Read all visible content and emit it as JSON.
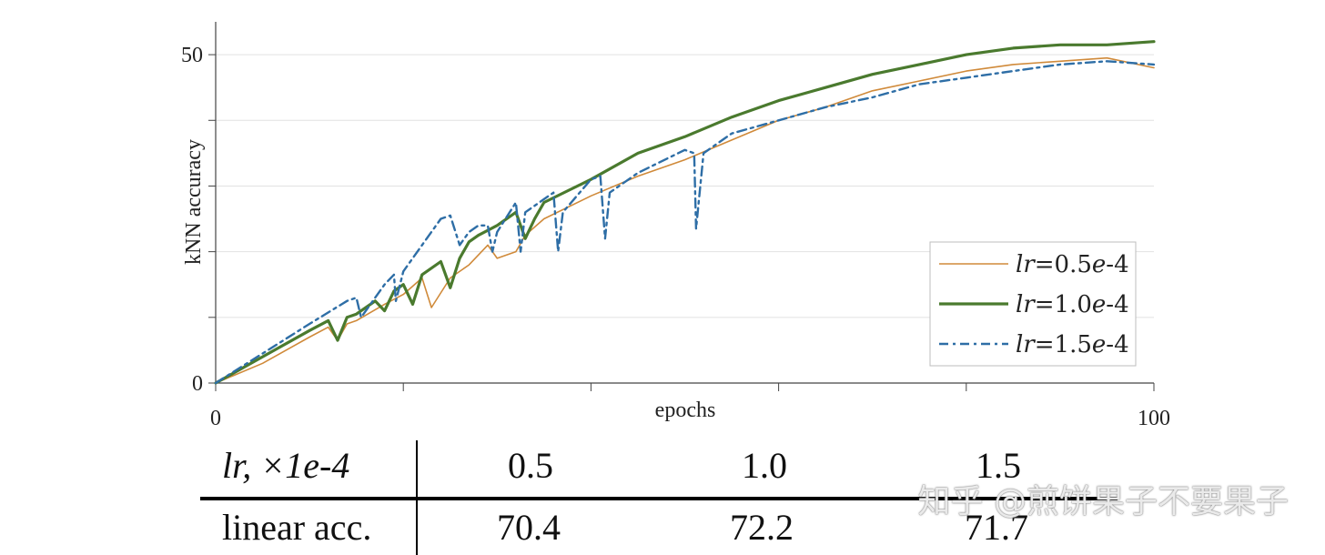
{
  "chart_data": {
    "type": "line",
    "xlabel": "epochs",
    "ylabel": "kNN accuracy",
    "xlim": [
      0,
      100
    ],
    "ylim": [
      0,
      55
    ],
    "x_ticks": [
      0,
      20,
      40,
      60,
      80,
      100
    ],
    "x_tick_labels": [
      "0",
      "",
      "",
      "",
      "",
      "100"
    ],
    "y_ticks": [
      0,
      10,
      20,
      30,
      40,
      50
    ],
    "y_tick_labels": [
      "0",
      "",
      "",
      "",
      "",
      "50"
    ],
    "grid": "horizontal",
    "legend_position": "lower-right",
    "series": [
      {
        "name": "lr=0.5e-4",
        "legend_parts": [
          {
            "t": "lr",
            "italic": true
          },
          {
            "t": "=0.5",
            "italic": false
          },
          {
            "t": "e",
            "italic": true
          },
          {
            "t": "-4",
            "italic": false
          }
        ],
        "color": "#d08a3a",
        "width": 1.6,
        "dash": "",
        "x": [
          0,
          5,
          10,
          12,
          13,
          14,
          15,
          18,
          20,
          22,
          23,
          25,
          27,
          29,
          30,
          32,
          33,
          35,
          40,
          45,
          50,
          55,
          60,
          65,
          70,
          75,
          80,
          85,
          90,
          95,
          100
        ],
        "y": [
          0,
          3,
          7,
          8.5,
          6.5,
          9,
          9.5,
          12,
          13.5,
          16,
          11.5,
          16,
          18,
          21,
          19,
          20,
          22.5,
          25,
          28.5,
          31.5,
          34,
          37,
          40,
          42,
          44.5,
          46,
          47.5,
          48.5,
          49,
          49.5,
          48
        ]
      },
      {
        "name": "lr=1.0e-4",
        "legend_parts": [
          {
            "t": "lr",
            "italic": true
          },
          {
            "t": "=1.0",
            "italic": false
          },
          {
            "t": "e",
            "italic": true
          },
          {
            "t": "-4",
            "italic": false
          }
        ],
        "color": "#4a7a2e",
        "width": 3.2,
        "dash": "",
        "x": [
          0,
          5,
          10,
          12,
          13,
          14,
          15,
          17,
          18,
          19,
          20,
          21,
          22,
          24,
          25,
          26,
          27,
          28,
          30,
          32,
          33,
          34,
          35,
          40,
          45,
          50,
          55,
          60,
          65,
          70,
          75,
          80,
          85,
          90,
          95,
          100
        ],
        "y": [
          0,
          4,
          8,
          9.5,
          6.5,
          10,
          10.5,
          12.5,
          11,
          14,
          15,
          12,
          16.5,
          18.5,
          14.5,
          19,
          21.5,
          22.5,
          24,
          26,
          22,
          25,
          27.5,
          31,
          35,
          37.5,
          40.5,
          43,
          45,
          47,
          48.5,
          50,
          51,
          51.5,
          51.5,
          52
        ]
      },
      {
        "name": "lr=1.5e-4",
        "legend_parts": [
          {
            "t": "lr",
            "italic": true
          },
          {
            "t": "=1.5",
            "italic": false
          },
          {
            "t": "e",
            "italic": true
          },
          {
            "t": "-4",
            "italic": false
          }
        ],
        "color": "#2e6ea6",
        "width": 2.4,
        "dash": "10 5 3 5",
        "x": [
          0,
          5,
          10,
          14,
          15,
          15.5,
          18,
          19,
          19.2,
          20,
          24,
          25,
          26,
          27,
          28,
          29,
          29.5,
          30,
          32,
          32.5,
          33,
          35,
          36,
          36.5,
          37,
          40,
          41,
          41.5,
          42,
          45,
          50,
          51,
          51.2,
          52,
          55,
          60,
          65,
          70,
          75,
          80,
          85,
          90,
          95,
          100
        ],
        "y": [
          0,
          4.5,
          9,
          12.5,
          13,
          10,
          15,
          16.5,
          12.5,
          17,
          25,
          25.5,
          21,
          23,
          24,
          24,
          20,
          23,
          27.5,
          20,
          26,
          28,
          29,
          20,
          26,
          31,
          31.5,
          22,
          29,
          32,
          35.5,
          35,
          23.5,
          35,
          38,
          40,
          42,
          43.5,
          45.5,
          46.5,
          47.5,
          48.5,
          49,
          48.5
        ]
      }
    ]
  },
  "table": {
    "header_label": "lr, ×1e-4",
    "header_values": [
      "0.5",
      "1.0",
      "1.5"
    ],
    "row_label": "linear acc.",
    "row_values": [
      "70.4",
      "72.2",
      "71.7"
    ]
  },
  "watermark": "知乎 @煎饼果子不要果子"
}
